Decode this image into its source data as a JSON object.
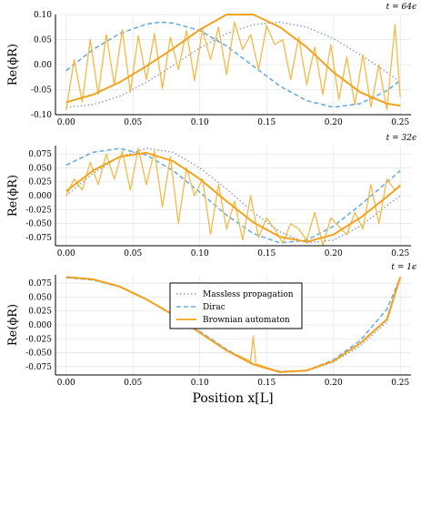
{
  "figure": {
    "xlabel": "Position x[L]",
    "legend": {
      "placement": "top-center (bottom panel)",
      "entries": [
        "Massless propagation",
        "Dirac",
        "Brownian automaton"
      ]
    }
  },
  "colors": {
    "massless": "#8a9bb8",
    "dirac": "#6aaee0",
    "brownian_noisy": "#f5b945",
    "brownian_smooth": "#f3a21d",
    "grid": "#e6e6e6"
  },
  "chart_data": [
    {
      "type": "line",
      "panel_label": "t = 64ϵ",
      "ylabel": "Re(ϕR)",
      "xlim": [
        0.0,
        0.25
      ],
      "ylim": [
        -0.1,
        0.1
      ],
      "xticks": [
        "0.00",
        "0.05",
        "0.10",
        "0.15",
        "0.20",
        "0.25"
      ],
      "yticks": [
        "0.10",
        "0.05",
        "0.00",
        "-0.05",
        "-0.10"
      ],
      "ytick_values": [
        0.1,
        0.05,
        0.0,
        -0.05,
        -0.1
      ],
      "series": [
        {
          "name": "Massless propagation",
          "role": "massless",
          "x": [
            0.0,
            0.02,
            0.04,
            0.06,
            0.08,
            0.1,
            0.12,
            0.14,
            0.16,
            0.18,
            0.2,
            0.22,
            0.24,
            0.25
          ],
          "y": [
            -0.085,
            -0.08,
            -0.063,
            -0.035,
            -0.002,
            0.033,
            0.062,
            0.08,
            0.085,
            0.075,
            0.052,
            0.02,
            -0.015,
            -0.035
          ]
        },
        {
          "name": "Dirac",
          "role": "dirac",
          "x": [
            0.0,
            0.02,
            0.04,
            0.06,
            0.07,
            0.08,
            0.1,
            0.12,
            0.14,
            0.16,
            0.18,
            0.2,
            0.22,
            0.24,
            0.25
          ],
          "y": [
            -0.012,
            0.03,
            0.062,
            0.081,
            0.085,
            0.083,
            0.068,
            0.037,
            -0.003,
            -0.043,
            -0.072,
            -0.085,
            -0.078,
            -0.052,
            -0.032
          ]
        },
        {
          "name": "Brownian automaton",
          "role": "brownian_smooth",
          "x": [
            0.0,
            0.02,
            0.04,
            0.06,
            0.08,
            0.1,
            0.12,
            0.14,
            0.16,
            0.18,
            0.2,
            0.22,
            0.24,
            0.25
          ],
          "y": [
            -0.075,
            -0.06,
            -0.035,
            -0.003,
            0.032,
            0.07,
            0.1,
            0.1,
            0.075,
            0.035,
            -0.015,
            -0.055,
            -0.078,
            -0.082
          ]
        },
        {
          "name": "Brownian automaton",
          "role": "brownian_noisy",
          "x": [
            0.0,
            0.006,
            0.012,
            0.018,
            0.024,
            0.03,
            0.036,
            0.042,
            0.048,
            0.054,
            0.06,
            0.066,
            0.072,
            0.078,
            0.084,
            0.09,
            0.096,
            0.102,
            0.108,
            0.114,
            0.12,
            0.126,
            0.132,
            0.138,
            0.144,
            0.15,
            0.156,
            0.162,
            0.168,
            0.174,
            0.18,
            0.186,
            0.192,
            0.198,
            0.204,
            0.21,
            0.216,
            0.222,
            0.228,
            0.234,
            0.24,
            0.246,
            0.25
          ],
          "y": [
            -0.09,
            0.01,
            -0.075,
            0.05,
            -0.06,
            0.06,
            -0.04,
            0.07,
            -0.055,
            0.058,
            -0.03,
            0.062,
            -0.048,
            0.055,
            -0.01,
            0.068,
            -0.032,
            0.07,
            0.01,
            0.075,
            -0.02,
            0.085,
            0.03,
            0.06,
            -0.01,
            0.078,
            0.04,
            0.05,
            -0.03,
            0.055,
            -0.04,
            0.035,
            -0.06,
            0.04,
            -0.07,
            0.015,
            -0.08,
            0.02,
            -0.085,
            0.0,
            -0.09,
            0.08,
            -0.065
          ]
        }
      ]
    },
    {
      "type": "line",
      "panel_label": "t = 32ϵ",
      "ylabel": "Re(ϕR)",
      "xlim": [
        0.0,
        0.25
      ],
      "ylim": [
        -0.09,
        0.09
      ],
      "xticks": [
        "0.00",
        "0.05",
        "0.10",
        "0.15",
        "0.20",
        "0.25"
      ],
      "yticks": [
        "0.075",
        "0.050",
        "0.025",
        "0.000",
        "-0.025",
        "-0.050",
        "-0.075"
      ],
      "ytick_values": [
        0.075,
        0.05,
        0.025,
        0.0,
        -0.025,
        -0.05,
        -0.075
      ],
      "series": [
        {
          "name": "Massless propagation",
          "role": "massless",
          "x": [
            0.0,
            0.02,
            0.04,
            0.06,
            0.08,
            0.1,
            0.12,
            0.14,
            0.16,
            0.18,
            0.2,
            0.22,
            0.24,
            0.25
          ],
          "y": [
            0.0,
            0.04,
            0.07,
            0.085,
            0.078,
            0.05,
            0.012,
            -0.03,
            -0.065,
            -0.085,
            -0.08,
            -0.055,
            -0.018,
            0.0
          ]
        },
        {
          "name": "Dirac",
          "role": "dirac",
          "x": [
            0.0,
            0.02,
            0.04,
            0.06,
            0.08,
            0.1,
            0.12,
            0.14,
            0.16,
            0.18,
            0.2,
            0.22,
            0.24,
            0.25
          ],
          "y": [
            0.055,
            0.078,
            0.085,
            0.073,
            0.045,
            0.006,
            -0.035,
            -0.068,
            -0.085,
            -0.08,
            -0.055,
            -0.017,
            0.024,
            0.045
          ]
        },
        {
          "name": "Brownian automaton",
          "role": "brownian_smooth",
          "x": [
            0.0,
            0.02,
            0.04,
            0.06,
            0.08,
            0.1,
            0.12,
            0.14,
            0.16,
            0.18,
            0.2,
            0.22,
            0.24,
            0.25
          ],
          "y": [
            0.008,
            0.045,
            0.07,
            0.077,
            0.062,
            0.03,
            -0.01,
            -0.048,
            -0.074,
            -0.083,
            -0.07,
            -0.04,
            -0.002,
            0.018
          ]
        },
        {
          "name": "Brownian automaton",
          "role": "brownian_noisy",
          "x": [
            0.0,
            0.006,
            0.012,
            0.018,
            0.024,
            0.03,
            0.036,
            0.042,
            0.048,
            0.054,
            0.06,
            0.066,
            0.072,
            0.078,
            0.084,
            0.09,
            0.096,
            0.102,
            0.108,
            0.114,
            0.12,
            0.126,
            0.132,
            0.138,
            0.144,
            0.15,
            0.156,
            0.162,
            0.168,
            0.174,
            0.18,
            0.186,
            0.192,
            0.198,
            0.204,
            0.21,
            0.216,
            0.222,
            0.228,
            0.234,
            0.24,
            0.246,
            0.25
          ],
          "y": [
            0.0,
            0.03,
            0.01,
            0.06,
            0.02,
            0.075,
            0.03,
            0.08,
            0.01,
            0.085,
            0.02,
            0.08,
            -0.02,
            0.07,
            -0.05,
            0.05,
            0.0,
            0.03,
            -0.07,
            0.02,
            -0.06,
            -0.01,
            -0.08,
            0.0,
            -0.075,
            -0.04,
            -0.06,
            -0.085,
            -0.05,
            -0.06,
            -0.08,
            -0.03,
            -0.09,
            -0.04,
            -0.055,
            -0.07,
            -0.03,
            -0.06,
            0.02,
            -0.05,
            0.03,
            0.01,
            0.02
          ]
        }
      ]
    },
    {
      "type": "line",
      "panel_label": "t = 1ϵ",
      "ylabel": "Re(ϕR)",
      "xlim": [
        0.0,
        0.25
      ],
      "ylim": [
        -0.09,
        0.09
      ],
      "xticks": [
        "0.00",
        "0.05",
        "0.10",
        "0.15",
        "0.20",
        "0.25"
      ],
      "yticks": [
        "0.075",
        "0.050",
        "0.025",
        "0.000",
        "-0.025",
        "-0.050",
        "-0.075"
      ],
      "ytick_values": [
        0.075,
        0.05,
        0.025,
        0.0,
        -0.025,
        -0.05,
        -0.075
      ],
      "series": [
        {
          "name": "Massless propagation",
          "role": "massless",
          "x": [
            0.0,
            0.02,
            0.04,
            0.06,
            0.08,
            0.1,
            0.12,
            0.14,
            0.16,
            0.18,
            0.2,
            0.22,
            0.24,
            0.25
          ],
          "y": [
            0.085,
            0.081,
            0.068,
            0.045,
            0.018,
            -0.013,
            -0.045,
            -0.07,
            -0.084,
            -0.083,
            -0.067,
            -0.038,
            0.005,
            0.085
          ]
        },
        {
          "name": "Dirac",
          "role": "dirac",
          "x": [
            0.0,
            0.02,
            0.04,
            0.06,
            0.08,
            0.1,
            0.12,
            0.14,
            0.16,
            0.18,
            0.2,
            0.22,
            0.24,
            0.25
          ],
          "y": [
            0.085,
            0.081,
            0.069,
            0.046,
            0.019,
            -0.012,
            -0.044,
            -0.07,
            -0.084,
            -0.082,
            -0.063,
            -0.028,
            0.028,
            0.085
          ]
        },
        {
          "name": "Brownian automaton",
          "role": "brownian_smooth",
          "x": [
            0.0,
            0.02,
            0.04,
            0.06,
            0.08,
            0.1,
            0.12,
            0.14,
            0.16,
            0.18,
            0.2,
            0.22,
            0.24,
            0.25
          ],
          "y": [
            0.086,
            0.082,
            0.069,
            0.046,
            0.018,
            -0.014,
            -0.046,
            -0.071,
            -0.085,
            -0.082,
            -0.065,
            -0.033,
            0.01,
            0.086
          ]
        },
        {
          "name": "Brownian automaton",
          "role": "brownian_noisy",
          "x": [
            0.0,
            0.02,
            0.04,
            0.06,
            0.08,
            0.1,
            0.12,
            0.138,
            0.14,
            0.142,
            0.16,
            0.18,
            0.2,
            0.22,
            0.24,
            0.25
          ],
          "y": [
            0.086,
            0.082,
            0.069,
            0.046,
            0.018,
            -0.014,
            -0.046,
            -0.065,
            -0.02,
            -0.07,
            -0.085,
            -0.082,
            -0.065,
            -0.033,
            0.01,
            0.086
          ]
        }
      ]
    }
  ]
}
